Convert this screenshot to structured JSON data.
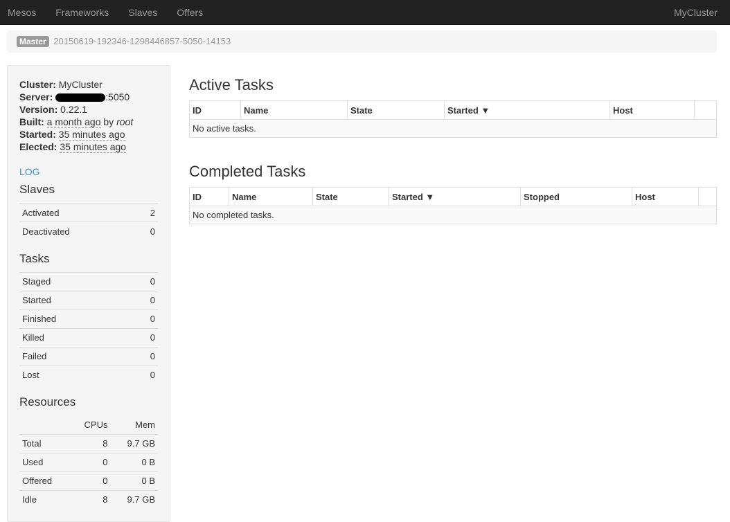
{
  "nav": {
    "brand": "Mesos",
    "items": [
      "Frameworks",
      "Slaves",
      "Offers"
    ],
    "cluster": "MyCluster"
  },
  "breadcrumb": {
    "badge": "Master",
    "id": "20150619-192346-1298446857-5050-14153"
  },
  "info": {
    "cluster_label": "Cluster:",
    "cluster": "MyCluster",
    "server_label": "Server:",
    "server_port": ":5050",
    "version_label": "Version:",
    "version": "0.22.1",
    "built_label": "Built:",
    "built": "a month ago",
    "built_by": "by",
    "built_user": "root",
    "started_label": "Started:",
    "started": "35 minutes ago",
    "elected_label": "Elected:",
    "elected": "35 minutes ago"
  },
  "log": "LOG",
  "slaves": {
    "title": "Slaves",
    "rows": [
      {
        "label": "Activated",
        "value": "2"
      },
      {
        "label": "Deactivated",
        "value": "0"
      }
    ]
  },
  "tasks": {
    "title": "Tasks",
    "rows": [
      {
        "label": "Staged",
        "value": "0"
      },
      {
        "label": "Started",
        "value": "0"
      },
      {
        "label": "Finished",
        "value": "0"
      },
      {
        "label": "Killed",
        "value": "0"
      },
      {
        "label": "Failed",
        "value": "0"
      },
      {
        "label": "Lost",
        "value": "0"
      }
    ]
  },
  "resources": {
    "title": "Resources",
    "headers": [
      "CPUs",
      "Mem"
    ],
    "rows": [
      {
        "label": "Total",
        "cpus": "8",
        "mem": "9.7 GB"
      },
      {
        "label": "Used",
        "cpus": "0",
        "mem": "0 B"
      },
      {
        "label": "Offered",
        "cpus": "0",
        "mem": "0 B"
      },
      {
        "label": "Idle",
        "cpus": "8",
        "mem": "9.7 GB"
      }
    ]
  },
  "active": {
    "title": "Active Tasks",
    "columns": [
      "ID",
      "Name",
      "State",
      "Started ▼",
      "Host",
      ""
    ],
    "empty": "No active tasks."
  },
  "completed": {
    "title": "Completed Tasks",
    "columns": [
      "ID",
      "Name",
      "State",
      "Started ▼",
      "Stopped",
      "Host",
      ""
    ],
    "empty": "No completed tasks."
  }
}
